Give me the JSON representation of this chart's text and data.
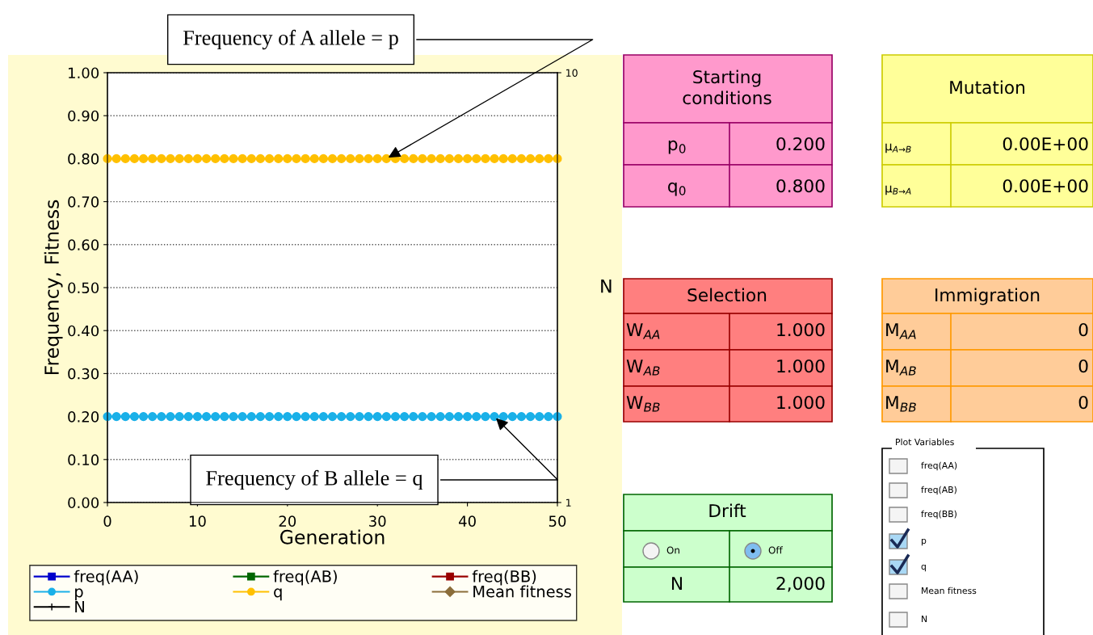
{
  "chart_data": [
    {
      "type": "line",
      "xlabel": "Generation",
      "ylabel": "Frequency, Fitness",
      "y2label": "N",
      "x": [
        0,
        1,
        2,
        3,
        4,
        5,
        6,
        7,
        8,
        9,
        10,
        11,
        12,
        13,
        14,
        15,
        16,
        17,
        18,
        19,
        20,
        21,
        22,
        23,
        24,
        25,
        26,
        27,
        28,
        29,
        30,
        31,
        32,
        33,
        34,
        35,
        36,
        37,
        38,
        39,
        40,
        41,
        42,
        43,
        44,
        45,
        46,
        47,
        48,
        49,
        50
      ],
      "series": [
        {
          "name": "freq(AA)",
          "color": "#0000cc",
          "marker": "square",
          "values": [
            null,
            null,
            null,
            null,
            null,
            null,
            null,
            null,
            null,
            null,
            null,
            null,
            null,
            null,
            null,
            null,
            null,
            null,
            null,
            null,
            null,
            null,
            null,
            null,
            null,
            null,
            null,
            null,
            null,
            null,
            null,
            null,
            null,
            null,
            null,
            null,
            null,
            null,
            null,
            null,
            null,
            null,
            null,
            null,
            null,
            null,
            null,
            null,
            null,
            null,
            null
          ]
        },
        {
          "name": "freq(AB)",
          "color": "#006600",
          "marker": "square",
          "values": [
            null,
            null,
            null,
            null,
            null,
            null,
            null,
            null,
            null,
            null,
            null,
            null,
            null,
            null,
            null,
            null,
            null,
            null,
            null,
            null,
            null,
            null,
            null,
            null,
            null,
            null,
            null,
            null,
            null,
            null,
            null,
            null,
            null,
            null,
            null,
            null,
            null,
            null,
            null,
            null,
            null,
            null,
            null,
            null,
            null,
            null,
            null,
            null,
            null,
            null,
            null
          ]
        },
        {
          "name": "freq(BB)",
          "color": "#990000",
          "marker": "square",
          "values": [
            null,
            null,
            null,
            null,
            null,
            null,
            null,
            null,
            null,
            null,
            null,
            null,
            null,
            null,
            null,
            null,
            null,
            null,
            null,
            null,
            null,
            null,
            null,
            null,
            null,
            null,
            null,
            null,
            null,
            null,
            null,
            null,
            null,
            null,
            null,
            null,
            null,
            null,
            null,
            null,
            null,
            null,
            null,
            null,
            null,
            null,
            null,
            null,
            null,
            null,
            null
          ]
        },
        {
          "name": "p",
          "color": "#1ab0e8",
          "marker": "circle",
          "values": [
            0.2,
            0.2,
            0.2,
            0.2,
            0.2,
            0.2,
            0.2,
            0.2,
            0.2,
            0.2,
            0.2,
            0.2,
            0.2,
            0.2,
            0.2,
            0.2,
            0.2,
            0.2,
            0.2,
            0.2,
            0.2,
            0.2,
            0.2,
            0.2,
            0.2,
            0.2,
            0.2,
            0.2,
            0.2,
            0.2,
            0.2,
            0.2,
            0.2,
            0.2,
            0.2,
            0.2,
            0.2,
            0.2,
            0.2,
            0.2,
            0.2,
            0.2,
            0.2,
            0.2,
            0.2,
            0.2,
            0.2,
            0.2,
            0.2,
            0.2,
            0.2
          ]
        },
        {
          "name": "q",
          "color": "#ffc000",
          "marker": "circle",
          "values": [
            0.8,
            0.8,
            0.8,
            0.8,
            0.8,
            0.8,
            0.8,
            0.8,
            0.8,
            0.8,
            0.8,
            0.8,
            0.8,
            0.8,
            0.8,
            0.8,
            0.8,
            0.8,
            0.8,
            0.8,
            0.8,
            0.8,
            0.8,
            0.8,
            0.8,
            0.8,
            0.8,
            0.8,
            0.8,
            0.8,
            0.8,
            0.8,
            0.8,
            0.8,
            0.8,
            0.8,
            0.8,
            0.8,
            0.8,
            0.8,
            0.8,
            0.8,
            0.8,
            0.8,
            0.8,
            0.8,
            0.8,
            0.8,
            0.8,
            0.8,
            0.8
          ]
        },
        {
          "name": "Mean fitness",
          "color": "#8b6d3a",
          "marker": "diamond",
          "values": [
            null,
            null,
            null,
            null,
            null,
            null,
            null,
            null,
            null,
            null,
            null,
            null,
            null,
            null,
            null,
            null,
            null,
            null,
            null,
            null,
            null,
            null,
            null,
            null,
            null,
            null,
            null,
            null,
            null,
            null,
            null,
            null,
            null,
            null,
            null,
            null,
            null,
            null,
            null,
            null,
            null,
            null,
            null,
            null,
            null,
            null,
            null,
            null,
            null,
            null,
            null
          ]
        },
        {
          "name": "N",
          "color": "#000000",
          "marker": "cross",
          "values": [
            null,
            null,
            null,
            null,
            null,
            null,
            null,
            null,
            null,
            null,
            null,
            null,
            null,
            null,
            null,
            null,
            null,
            null,
            null,
            null,
            null,
            null,
            null,
            null,
            null,
            null,
            null,
            null,
            null,
            null,
            null,
            null,
            null,
            null,
            null,
            null,
            null,
            null,
            null,
            null,
            null,
            null,
            null,
            null,
            null,
            null,
            null,
            null,
            null,
            null,
            null
          ]
        }
      ],
      "xlim": [
        0,
        50
      ],
      "xticks": [
        0,
        10,
        20,
        30,
        40,
        50
      ],
      "ylim": [
        0,
        1
      ],
      "yticks": [
        {
          "value": 0,
          "label": "0.00"
        },
        {
          "value": 0.1,
          "label": "0.10"
        },
        {
          "value": 0.2,
          "label": "0.20"
        },
        {
          "value": 0.3,
          "label": "0.30"
        },
        {
          "value": 0.4,
          "label": "0.40"
        },
        {
          "value": 0.5,
          "label": "0.50"
        },
        {
          "value": 0.6,
          "label": "0.60"
        },
        {
          "value": 0.7,
          "label": "0.70"
        },
        {
          "value": 0.8,
          "label": "0.80"
        },
        {
          "value": 0.9,
          "label": "0.90"
        },
        {
          "value": 1,
          "label": "1.00"
        }
      ],
      "y2lim": [
        1,
        10
      ],
      "y2ticks": [
        1,
        10
      ],
      "grid": "y",
      "legend": "bottom",
      "annotations": [
        {
          "text": "Frequency of A allele = p",
          "x": 31,
          "y": 0.8
        },
        {
          "text": "Frequency of B allele = q",
          "x": 43,
          "y": 0.2
        }
      ]
    },
    {
      "type": "other",
      "annotations": [
        "Starting\nconditions",
        "p$_{0}$",
        "0.200",
        "q$_{0}$",
        "0.800",
        "Mutation",
        "μ$_{A→B}$",
        "0.00E+00",
        "μ$_{B→A}$",
        "0.00E+00",
        "Selection",
        "W$_{AA}$",
        "1.000",
        "W$_{AB}$",
        "1.000",
        "W$_{BB}$",
        "1.000",
        "Immigration",
        "M$_{AA}$",
        "0",
        "M$_{AB}$",
        "0",
        "M$_{BB}$",
        "0",
        "Drift",
        "On",
        "Off",
        "N",
        "2,000",
        "Plot Variables",
        "freq(AA)",
        "freq(AB)",
        "freq(BB)",
        "p",
        "q",
        "Mean fitness",
        "N"
      ]
    }
  ]
}
